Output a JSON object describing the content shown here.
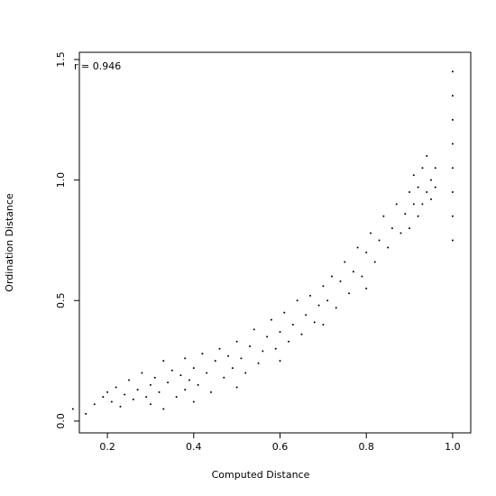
{
  "chart_data": {
    "type": "scatter",
    "xlabel": "Computed Distance",
    "ylabel": "Ordination Distance",
    "annotation": "r =  0.946",
    "xlim": [
      0.135,
      1.042
    ],
    "ylim": [
      -0.049,
      1.53
    ],
    "xticks": [
      0.2,
      0.4,
      0.6,
      0.8,
      {
        "value": 1,
        "label": "1.0"
      }
    ],
    "yticks": [
      {
        "value": 0,
        "label": "0.0"
      },
      0.5,
      {
        "value": 1,
        "label": "1.0"
      },
      1.5
    ],
    "color": "#000000",
    "x": [
      0.12,
      0.15,
      0.17,
      0.19,
      0.2,
      0.21,
      0.22,
      0.23,
      0.24,
      0.25,
      0.26,
      0.27,
      0.28,
      0.29,
      0.3,
      0.3,
      0.31,
      0.32,
      0.33,
      0.33,
      0.34,
      0.35,
      0.36,
      0.37,
      0.38,
      0.38,
      0.39,
      0.4,
      0.4,
      0.41,
      0.42,
      0.43,
      0.44,
      0.45,
      0.46,
      0.47,
      0.48,
      0.49,
      0.5,
      0.5,
      0.51,
      0.52,
      0.53,
      0.54,
      0.55,
      0.56,
      0.57,
      0.58,
      0.59,
      0.6,
      0.6,
      0.61,
      0.62,
      0.63,
      0.64,
      0.65,
      0.66,
      0.67,
      0.68,
      0.69,
      0.7,
      0.7,
      0.71,
      0.72,
      0.73,
      0.74,
      0.75,
      0.76,
      0.77,
      0.78,
      0.79,
      0.8,
      0.8,
      0.81,
      0.82,
      0.83,
      0.84,
      0.85,
      0.86,
      0.87,
      0.88,
      0.89,
      0.9,
      0.9,
      0.91,
      0.91,
      0.92,
      0.92,
      0.93,
      0.93,
      0.94,
      0.94,
      0.95,
      0.95,
      0.96,
      0.96,
      1.0,
      1.0,
      1.0,
      1.0,
      1.0,
      1.0,
      1.0,
      1.0
    ],
    "values": [
      0.05,
      0.03,
      0.07,
      0.1,
      0.12,
      0.08,
      0.14,
      0.06,
      0.11,
      0.17,
      0.09,
      0.13,
      0.2,
      0.1,
      0.15,
      0.07,
      0.18,
      0.12,
      0.25,
      0.05,
      0.16,
      0.21,
      0.1,
      0.19,
      0.26,
      0.13,
      0.17,
      0.22,
      0.08,
      0.15,
      0.28,
      0.2,
      0.12,
      0.25,
      0.3,
      0.18,
      0.27,
      0.22,
      0.33,
      0.14,
      0.26,
      0.2,
      0.31,
      0.38,
      0.24,
      0.29,
      0.35,
      0.42,
      0.3,
      0.37,
      0.25,
      0.45,
      0.33,
      0.4,
      0.5,
      0.36,
      0.44,
      0.52,
      0.41,
      0.48,
      0.56,
      0.4,
      0.5,
      0.6,
      0.47,
      0.58,
      0.66,
      0.53,
      0.62,
      0.72,
      0.6,
      0.7,
      0.55,
      0.78,
      0.66,
      0.75,
      0.85,
      0.72,
      0.8,
      0.9,
      0.78,
      0.86,
      0.95,
      0.8,
      0.9,
      1.02,
      0.85,
      0.97,
      1.05,
      0.9,
      0.95,
      1.1,
      1.0,
      0.92,
      1.05,
      0.97,
      0.75,
      0.85,
      0.95,
      1.05,
      1.15,
      1.25,
      1.35,
      1.45
    ]
  }
}
